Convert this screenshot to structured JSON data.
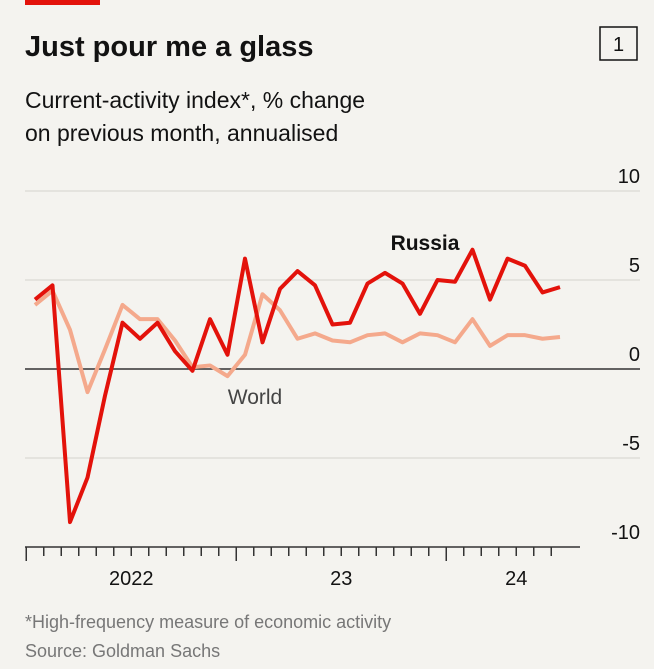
{
  "chart_data": {
    "type": "line",
    "title": "Just pour me a glass",
    "chart_number": "1",
    "subtitle": [
      "Current-activity index*, % change",
      "on previous month, annualised"
    ],
    "footnote": "*High-frequency measure of economic activity",
    "source": "Source: Goldman Sachs",
    "x": [
      "2022-01",
      "2022-02",
      "2022-03",
      "2022-04",
      "2022-05",
      "2022-06",
      "2022-07",
      "2022-08",
      "2022-09",
      "2022-10",
      "2022-11",
      "2022-12",
      "2023-01",
      "2023-02",
      "2023-03",
      "2023-04",
      "2023-05",
      "2023-06",
      "2023-07",
      "2023-08",
      "2023-09",
      "2023-10",
      "2023-11",
      "2023-12",
      "2024-01",
      "2024-02",
      "2024-03",
      "2024-04",
      "2024-05",
      "2024-06",
      "2024-07"
    ],
    "xticks": [
      {
        "value": "2022-07",
        "label": "2022"
      },
      {
        "value": "2023-07",
        "label": "23"
      },
      {
        "value": "2024-05",
        "label": "24"
      }
    ],
    "series": [
      {
        "name": "Russia",
        "color": "#e3120b",
        "values": [
          3.9,
          4.7,
          -8.6,
          -6.1,
          -1.5,
          2.6,
          1.7,
          2.6,
          1.0,
          -0.1,
          2.8,
          0.8,
          6.2,
          1.5,
          4.5,
          5.5,
          4.7,
          2.5,
          2.6,
          4.8,
          5.4,
          4.8,
          3.1,
          5.0,
          4.9,
          6.7,
          3.9,
          6.2,
          5.8,
          4.3,
          4.6
        ]
      },
      {
        "name": "World",
        "color": "#f4a98c",
        "values": [
          3.6,
          4.4,
          2.2,
          -1.3,
          1.1,
          3.6,
          2.8,
          2.8,
          1.6,
          0.1,
          0.2,
          -0.4,
          0.8,
          4.2,
          3.3,
          1.7,
          2.0,
          1.6,
          1.5,
          1.9,
          2.0,
          1.5,
          2.0,
          1.9,
          1.5,
          2.8,
          1.3,
          1.9,
          1.9,
          1.7,
          1.8
        ]
      }
    ],
    "ylim": [
      -10,
      10
    ],
    "yticks": [
      -10,
      -5,
      0,
      5,
      10
    ],
    "grid": true
  }
}
